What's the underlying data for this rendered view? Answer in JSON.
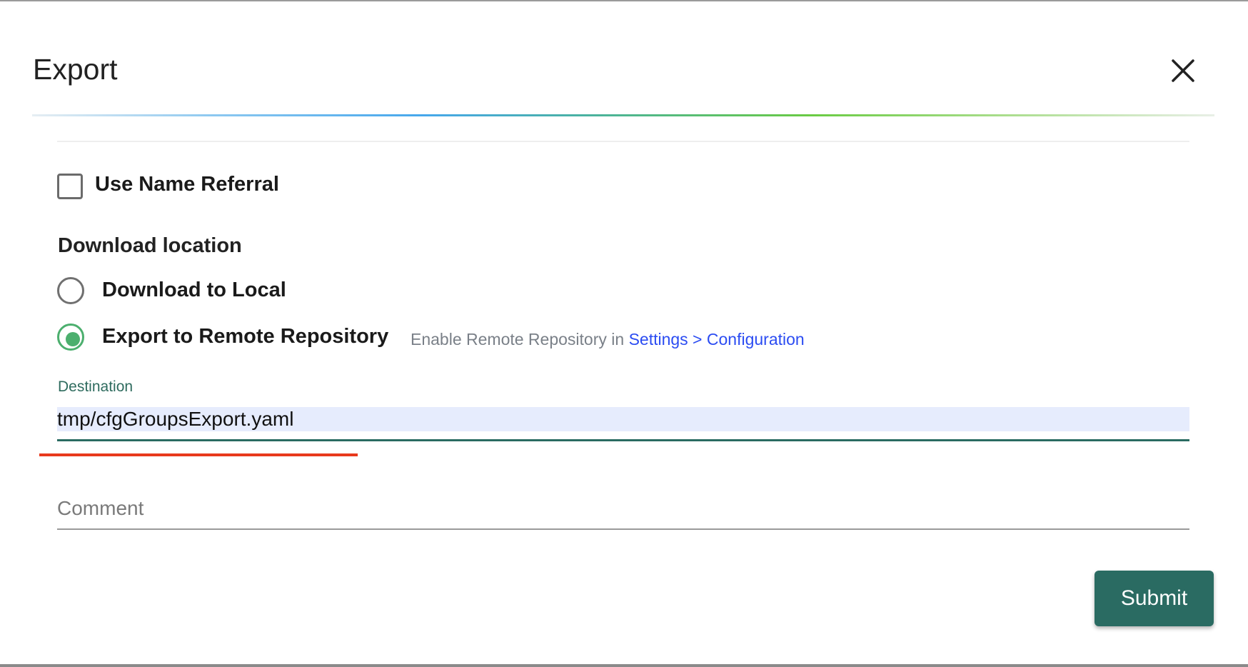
{
  "dialog": {
    "title": "Export",
    "close_icon": "close-x-icon"
  },
  "form": {
    "use_name_referral": {
      "label": "Use Name Referral",
      "checked": false
    },
    "download_location": {
      "heading": "Download location",
      "options": [
        {
          "label": "Download to Local",
          "selected": false
        },
        {
          "label": "Export to Remote Repository",
          "selected": true
        }
      ],
      "hint_prefix": "Enable Remote Repository in ",
      "hint_link": "Settings > Configuration"
    },
    "destination": {
      "label": "Destination",
      "value": "tmp/cfgGroupsExport.yaml"
    },
    "comment": {
      "placeholder": "Comment",
      "value": ""
    },
    "submit_label": "Submit"
  },
  "colors": {
    "accent": "#2a6b62",
    "radio_selected": "#4caf6e",
    "link": "#2b4cf2",
    "annotation_underline": "#e8391d",
    "input_bg": "#e6ecfd"
  }
}
